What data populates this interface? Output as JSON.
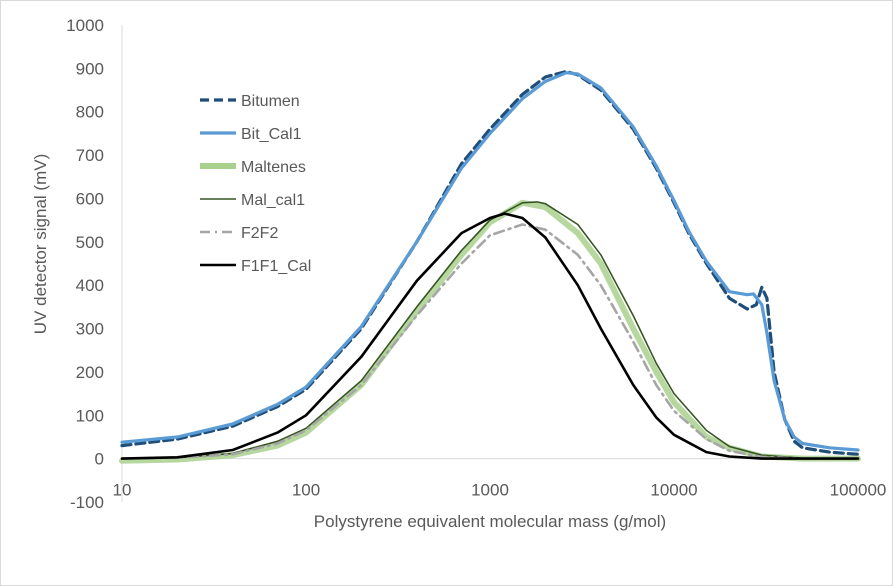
{
  "chart_data": {
    "type": "line",
    "title": "",
    "xlabel": "Polystyrene equivalent molecular mass (g/mol)",
    "ylabel": "UV detector signal (mV)",
    "x_scale": "log",
    "xlim": [
      10,
      100000
    ],
    "ylim": [
      -100,
      1000
    ],
    "x_ticks": [
      10,
      100,
      1000,
      10000,
      100000
    ],
    "x_tick_labels": [
      "10",
      "100",
      "1000",
      "10000",
      "100000"
    ],
    "y_ticks": [
      -100,
      0,
      100,
      200,
      300,
      400,
      500,
      600,
      700,
      800,
      900,
      1000
    ],
    "y_tick_labels": [
      "-100",
      "0",
      "100",
      "200",
      "300",
      "400",
      "500",
      "600",
      "700",
      "800",
      "900",
      "1000"
    ],
    "grid": false,
    "legend_position": "top-left",
    "series": [
      {
        "name": "Bitumen",
        "color": "#1f4e79",
        "dash": "dashed",
        "points": [
          [
            10,
            30
          ],
          [
            20,
            45
          ],
          [
            40,
            75
          ],
          [
            70,
            120
          ],
          [
            100,
            160
          ],
          [
            200,
            300
          ],
          [
            400,
            500
          ],
          [
            700,
            680
          ],
          [
            1000,
            760
          ],
          [
            1500,
            840
          ],
          [
            2000,
            880
          ],
          [
            2600,
            893
          ],
          [
            3000,
            885
          ],
          [
            4000,
            850
          ],
          [
            6000,
            760
          ],
          [
            8000,
            670
          ],
          [
            10000,
            590
          ],
          [
            12000,
            520
          ],
          [
            15000,
            450
          ],
          [
            20000,
            370
          ],
          [
            25000,
            345
          ],
          [
            28000,
            355
          ],
          [
            30000,
            395
          ],
          [
            32000,
            370
          ],
          [
            35000,
            200
          ],
          [
            40000,
            90
          ],
          [
            45000,
            40
          ],
          [
            50000,
            25
          ],
          [
            70000,
            15
          ],
          [
            100000,
            10
          ]
        ]
      },
      {
        "name": "Bit_Cal1",
        "color": "#5b9bd5",
        "dash": "solid",
        "points": [
          [
            10,
            38
          ],
          [
            20,
            50
          ],
          [
            40,
            80
          ],
          [
            70,
            125
          ],
          [
            100,
            165
          ],
          [
            200,
            305
          ],
          [
            400,
            500
          ],
          [
            700,
            670
          ],
          [
            1000,
            750
          ],
          [
            1500,
            830
          ],
          [
            2000,
            870
          ],
          [
            2600,
            890
          ],
          [
            3000,
            887
          ],
          [
            4000,
            855
          ],
          [
            6000,
            765
          ],
          [
            8000,
            675
          ],
          [
            10000,
            595
          ],
          [
            12000,
            525
          ],
          [
            15000,
            455
          ],
          [
            20000,
            385
          ],
          [
            25000,
            378
          ],
          [
            27000,
            380
          ],
          [
            30000,
            355
          ],
          [
            32000,
            290
          ],
          [
            35000,
            180
          ],
          [
            40000,
            90
          ],
          [
            45000,
            50
          ],
          [
            50000,
            35
          ],
          [
            70000,
            25
          ],
          [
            100000,
            20
          ]
        ]
      },
      {
        "name": "Maltenes",
        "color": "#a9d18e",
        "dash": "solid",
        "points": [
          [
            10,
            -5
          ],
          [
            20,
            -2
          ],
          [
            40,
            8
          ],
          [
            70,
            30
          ],
          [
            100,
            60
          ],
          [
            200,
            170
          ],
          [
            400,
            340
          ],
          [
            700,
            470
          ],
          [
            1000,
            545
          ],
          [
            1500,
            590
          ],
          [
            2000,
            580
          ],
          [
            3000,
            520
          ],
          [
            4000,
            450
          ],
          [
            6000,
            300
          ],
          [
            8000,
            200
          ],
          [
            10000,
            130
          ],
          [
            15000,
            50
          ],
          [
            20000,
            25
          ],
          [
            30000,
            5
          ],
          [
            50000,
            0
          ],
          [
            100000,
            0
          ]
        ]
      },
      {
        "name": "Mal_cal1",
        "color": "#375623",
        "dash": "solid",
        "points": [
          [
            10,
            0
          ],
          [
            20,
            2
          ],
          [
            40,
            12
          ],
          [
            70,
            40
          ],
          [
            100,
            70
          ],
          [
            200,
            180
          ],
          [
            400,
            350
          ],
          [
            700,
            480
          ],
          [
            1000,
            550
          ],
          [
            1500,
            590
          ],
          [
            1800,
            592
          ],
          [
            2000,
            588
          ],
          [
            3000,
            540
          ],
          [
            4000,
            470
          ],
          [
            6000,
            330
          ],
          [
            8000,
            220
          ],
          [
            10000,
            150
          ],
          [
            15000,
            65
          ],
          [
            20000,
            28
          ],
          [
            30000,
            8
          ],
          [
            50000,
            1
          ],
          [
            100000,
            0
          ]
        ]
      },
      {
        "name": "F2F2",
        "color": "#a6a6a6",
        "dash": "dashdot",
        "points": [
          [
            10,
            0
          ],
          [
            20,
            2
          ],
          [
            40,
            10
          ],
          [
            70,
            35
          ],
          [
            100,
            65
          ],
          [
            200,
            170
          ],
          [
            400,
            330
          ],
          [
            700,
            450
          ],
          [
            1000,
            515
          ],
          [
            1500,
            540
          ],
          [
            2000,
            528
          ],
          [
            3000,
            470
          ],
          [
            4000,
            400
          ],
          [
            6000,
            270
          ],
          [
            8000,
            170
          ],
          [
            10000,
            110
          ],
          [
            15000,
            45
          ],
          [
            20000,
            18
          ],
          [
            30000,
            4
          ],
          [
            50000,
            0
          ],
          [
            100000,
            0
          ]
        ]
      },
      {
        "name": "F1F1_Cal",
        "color": "#000000",
        "dash": "solid",
        "points": [
          [
            10,
            0
          ],
          [
            20,
            3
          ],
          [
            40,
            20
          ],
          [
            70,
            60
          ],
          [
            100,
            100
          ],
          [
            200,
            235
          ],
          [
            400,
            410
          ],
          [
            700,
            520
          ],
          [
            1000,
            555
          ],
          [
            1200,
            565
          ],
          [
            1500,
            555
          ],
          [
            2000,
            510
          ],
          [
            3000,
            400
          ],
          [
            4000,
            300
          ],
          [
            6000,
            170
          ],
          [
            8000,
            95
          ],
          [
            10000,
            55
          ],
          [
            15000,
            15
          ],
          [
            20000,
            5
          ],
          [
            30000,
            0
          ],
          [
            50000,
            0
          ],
          [
            100000,
            0
          ]
        ]
      }
    ]
  }
}
